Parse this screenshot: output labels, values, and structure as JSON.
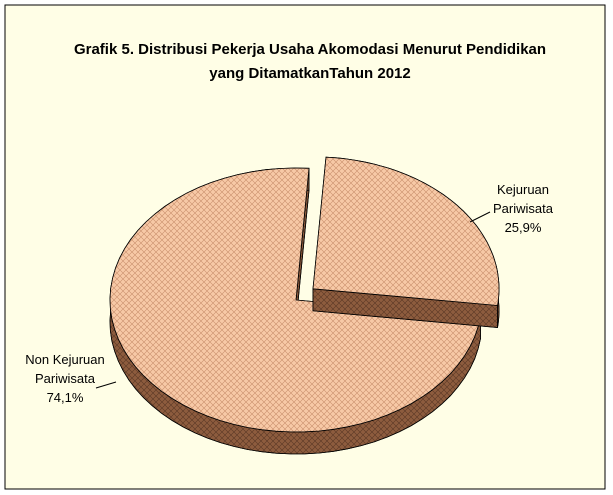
{
  "chart_data": {
    "type": "pie",
    "title": "Grafik 5. Distribusi Pekerja Usaha Akomodasi Menurut Pendidikan yang DitamatkanTahun 2012",
    "categories": [
      "Kejuruan Pariwisata",
      "Non Kejuruan Pariwisata"
    ],
    "values": [
      25.9,
      74.1
    ],
    "value_labels": [
      "25,9%",
      "74,1%"
    ],
    "colors": [
      "#f7c9a6",
      "#f7c9a6"
    ]
  }
}
